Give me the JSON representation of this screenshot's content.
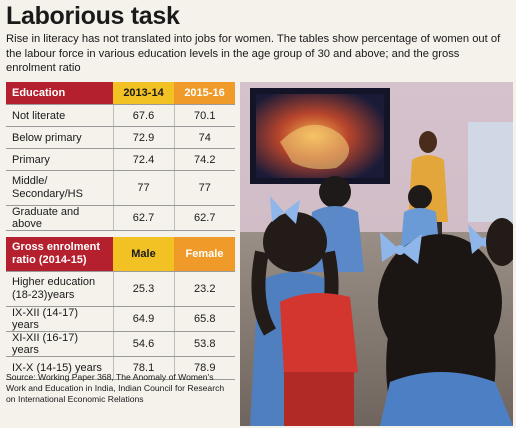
{
  "title": "Laborious task",
  "subtitle": "Rise in literacy has not translated into jobs for women. The tables show percentage of women out of the labour force in various education levels in the age group of 30 and above; and the gross enrolment ratio",
  "table1": {
    "headers": [
      "Education",
      "2013-14",
      "2015-16"
    ],
    "rows": [
      {
        "label": "Not literate",
        "a": "67.6",
        "b": "70.1"
      },
      {
        "label": "Below primary",
        "a": "72.9",
        "b": "74"
      },
      {
        "label": "Primary",
        "a": "72.4",
        "b": "74.2"
      },
      {
        "label": "Middle/ Secondary/HS",
        "a": "77",
        "b": "77"
      },
      {
        "label": "Graduate and above",
        "a": "62.7",
        "b": "62.7"
      }
    ]
  },
  "table2": {
    "headers": [
      "Gross enrolment ratio (2014-15)",
      "Male",
      "Female"
    ],
    "rows": [
      {
        "label": "Higher education (18-23)years",
        "a": "25.3",
        "b": "23.2"
      },
      {
        "label": "IX-XII (14-17) years",
        "a": "64.9",
        "b": "65.8"
      },
      {
        "label": "XI-XII (16-17) years",
        "a": "54.6",
        "b": "53.8"
      },
      {
        "label": "IX-X (14-15) years",
        "a": "78.1",
        "b": "78.9"
      }
    ]
  },
  "source": "Source: Working Paper 368, The Anomaly of Women's Work and Education in India, Indian Council for Research on International Economic Relations",
  "colors": {
    "header_red": "#b5202e",
    "header_yellow": "#f2c224",
    "header_orange": "#f09a2a"
  }
}
